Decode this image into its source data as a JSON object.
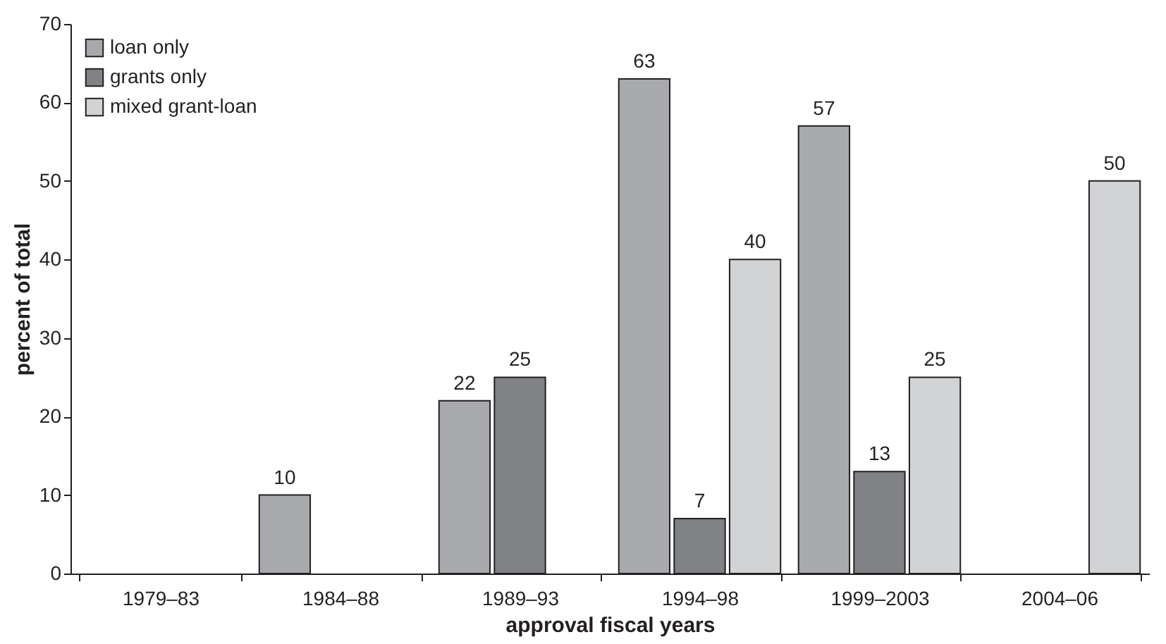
{
  "chart_data": {
    "type": "bar",
    "xlabel": "approval fiscal years",
    "ylabel": "percent of total",
    "categories": [
      "1979–83",
      "1984–88",
      "1989–93",
      "1994–98",
      "1999–2003",
      "2004–06"
    ],
    "series": [
      {
        "name": "loan only",
        "color": "#a7a9ac",
        "values": [
          null,
          10,
          22,
          63,
          57,
          null
        ]
      },
      {
        "name": "grants only",
        "color": "#808285",
        "values": [
          null,
          null,
          25,
          7,
          13,
          null
        ]
      },
      {
        "name": "mixed grant-loan",
        "color": "#d1d3d4",
        "values": [
          null,
          null,
          null,
          40,
          25,
          50
        ]
      }
    ],
    "ylim": [
      0,
      70
    ],
    "yticks": [
      0,
      10,
      20,
      30,
      40,
      50,
      60,
      70
    ],
    "data_labels": true,
    "legend": "top left",
    "grid": false
  }
}
